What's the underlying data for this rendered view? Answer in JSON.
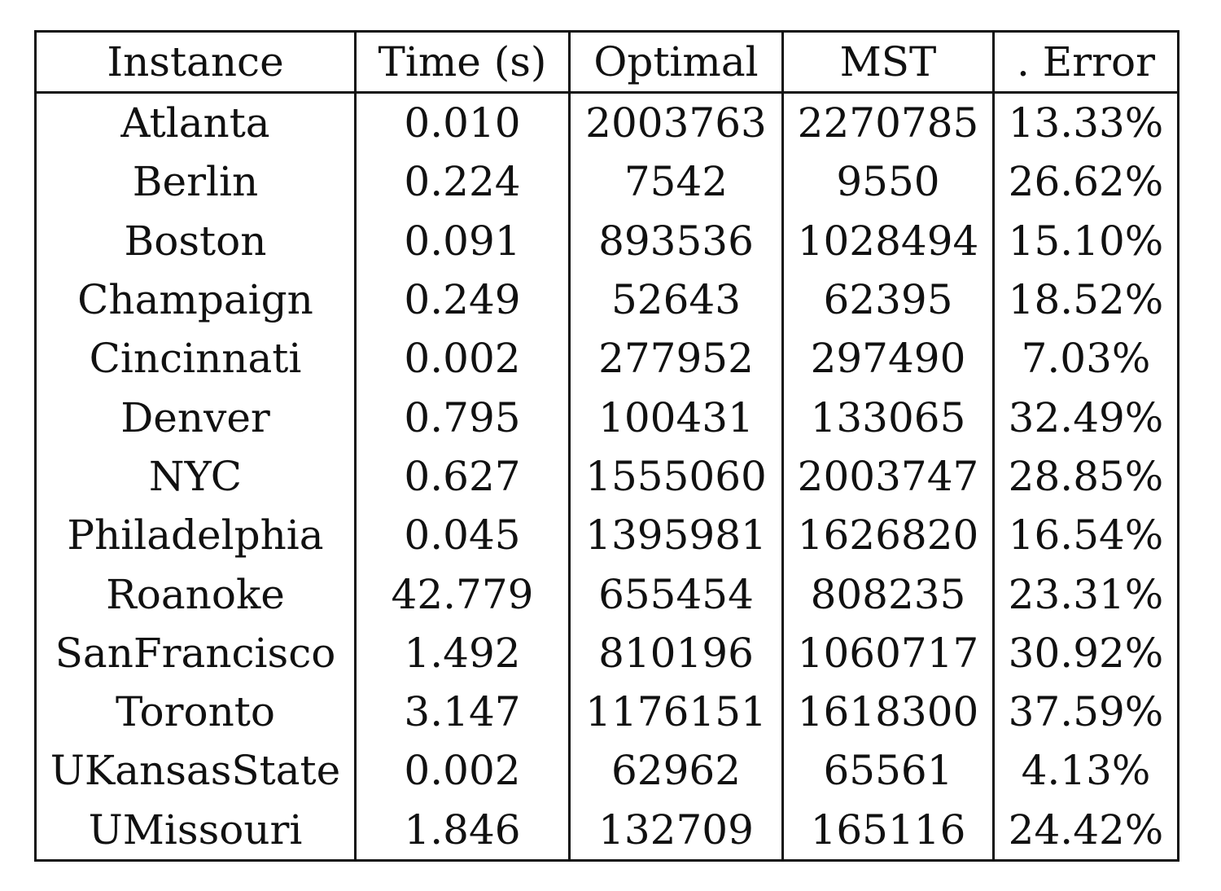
{
  "table": {
    "headers": [
      "Instance",
      "Time (s)",
      "Optimal",
      "MST",
      ". Error"
    ],
    "rows": [
      [
        "Atlanta",
        "0.010",
        "2003763",
        "2270785",
        "13.33%"
      ],
      [
        "Berlin",
        "0.224",
        "7542",
        "9550",
        "26.62%"
      ],
      [
        "Boston",
        "0.091",
        "893536",
        "1028494",
        "15.10%"
      ],
      [
        "Champaign",
        "0.249",
        "52643",
        "62395",
        "18.52%"
      ],
      [
        "Cincinnati",
        "0.002",
        "277952",
        "297490",
        "7.03%"
      ],
      [
        "Denver",
        "0.795",
        "100431",
        "133065",
        "32.49%"
      ],
      [
        "NYC",
        "0.627",
        "1555060",
        "2003747",
        "28.85%"
      ],
      [
        "Philadelphia",
        "0.045",
        "1395981",
        "1626820",
        "16.54%"
      ],
      [
        "Roanoke",
        "42.779",
        "655454",
        "808235",
        "23.31%"
      ],
      [
        "SanFrancisco",
        "1.492",
        "810196",
        "1060717",
        "30.92%"
      ],
      [
        "Toronto",
        "3.147",
        "1176151",
        "1618300",
        "37.59%"
      ],
      [
        "UKansasState",
        "0.002",
        "62962",
        "65561",
        "4.13%"
      ],
      [
        "UMissouri",
        "1.846",
        "132709",
        "165116",
        "24.42%"
      ]
    ]
  }
}
